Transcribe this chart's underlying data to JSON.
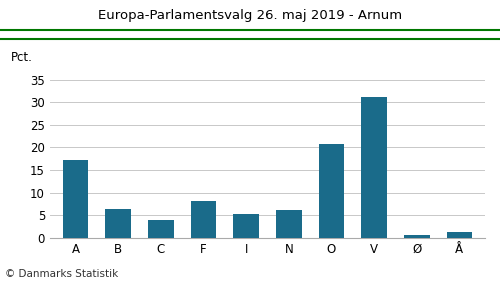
{
  "title": "Europa-Parlamentsvalg 26. maj 2019 - Arnum",
  "categories": [
    "A",
    "B",
    "C",
    "F",
    "I",
    "N",
    "O",
    "V",
    "Ø",
    "Å"
  ],
  "values": [
    17.2,
    6.4,
    4.0,
    8.1,
    5.3,
    6.1,
    20.8,
    31.2,
    0.7,
    1.3
  ],
  "bar_color": "#1a6b8a",
  "ylabel": "Pct.",
  "ylim": [
    0,
    37
  ],
  "yticks": [
    0,
    5,
    10,
    15,
    20,
    25,
    30,
    35
  ],
  "footer": "© Danmarks Statistik",
  "title_color": "#000000",
  "green_line_color": "#007700",
  "background_color": "#ffffff",
  "grid_color": "#c8c8c8",
  "title_fontsize": 9.5,
  "tick_fontsize": 8.5,
  "footer_fontsize": 7.5
}
